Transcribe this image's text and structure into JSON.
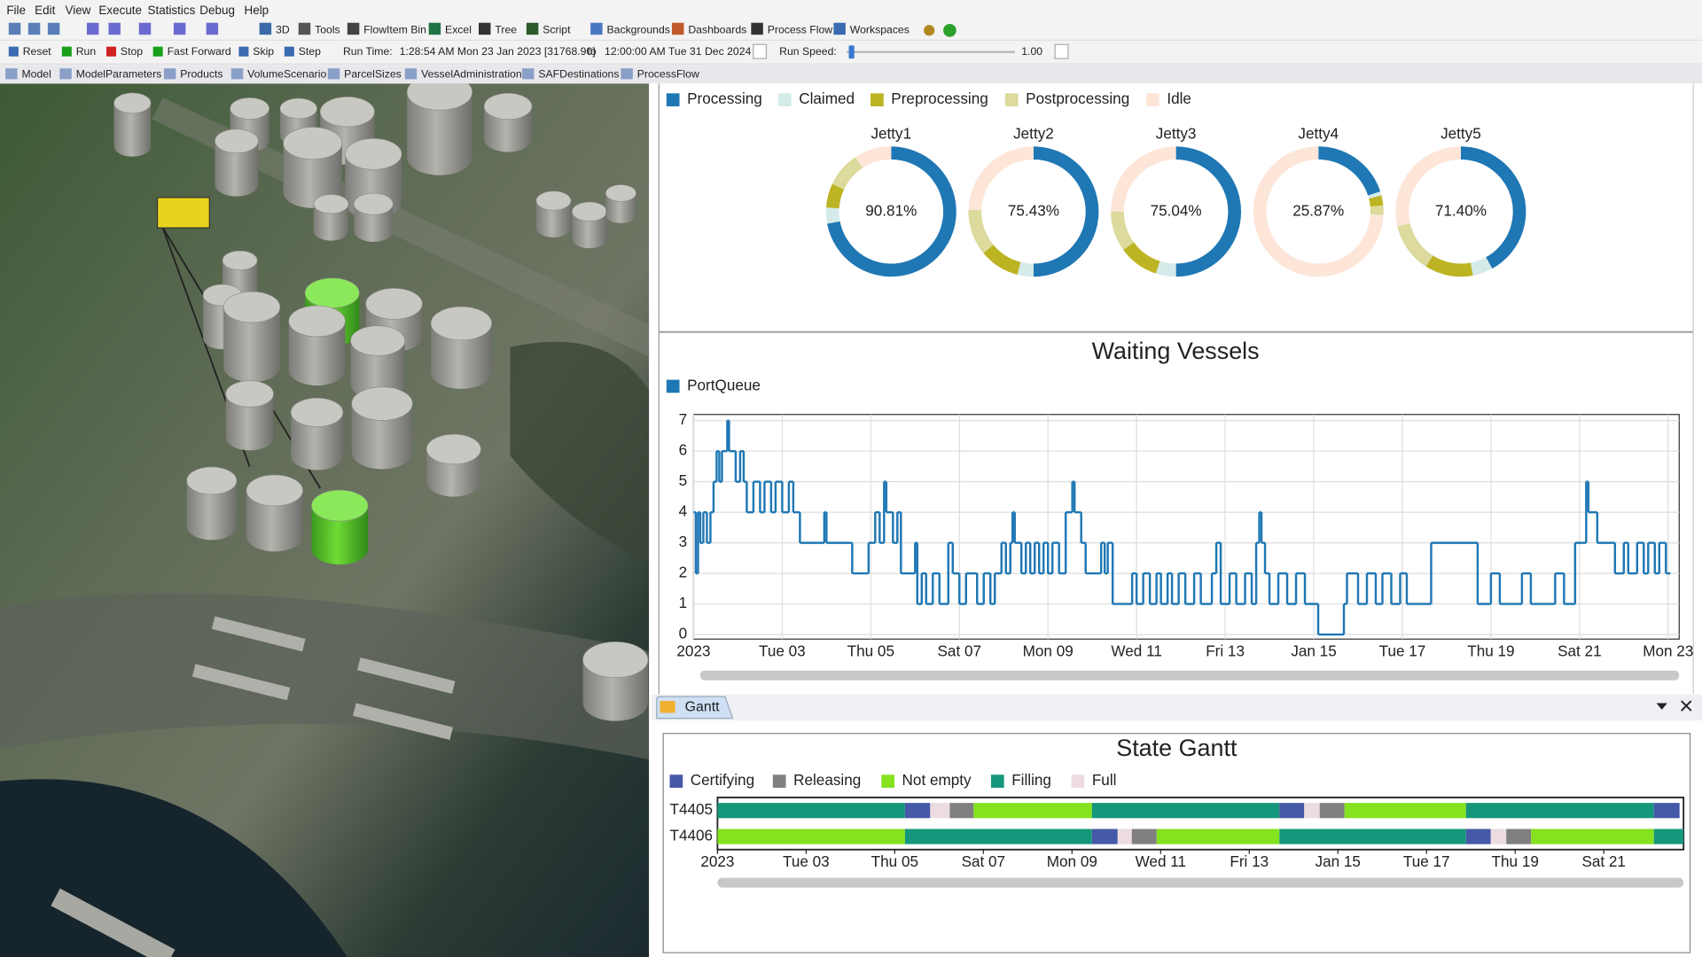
{
  "menu": [
    "File",
    "Edit",
    "View",
    "Execute",
    "Statistics",
    "Debug",
    "Help"
  ],
  "toolbar": [
    "3D",
    "Tools",
    "FlowItem Bin",
    "Excel",
    "Tree",
    "Script",
    "Backgrounds",
    "Dashboards",
    "Process Flow",
    "Workspaces"
  ],
  "run_bar": {
    "buttons": [
      "Reset",
      "Run",
      "Stop",
      "Fast Forward",
      "Skip",
      "Step"
    ],
    "run_time_label": "Run Time:",
    "start": "1:28:54 AM  Mon 23 Jan 2023  [31768.90]",
    "to": "to",
    "end": "12:00:00 AM  Tue 31 Dec 2024  [",
    "speed_label": "Run Speed:",
    "speed": "1.00"
  },
  "tabs": [
    "Model",
    "ModelParameters",
    "Products",
    "VolumeScenario",
    "ParcelSizes",
    "VesselAdministration",
    "SAFDestinations",
    "ProcessFlow"
  ],
  "gantt_tab": "Gantt",
  "chart_data": [
    {
      "type": "donut",
      "categories": [
        "Jetty1",
        "Jetty2",
        "Jetty3",
        "Jetty4",
        "Jetty5"
      ],
      "series": [
        {
          "name": "Processing",
          "color": "#1f77b4",
          "values": [
            72,
            50,
            50,
            20,
            42
          ]
        },
        {
          "name": "Claimed",
          "color": "#d4ebea",
          "values": [
            4,
            4,
            5,
            1,
            5
          ]
        },
        {
          "name": "Preprocessing",
          "color": "#bcb422",
          "values": [
            6,
            10,
            10,
            2.5,
            12
          ]
        },
        {
          "name": "Postprocessing",
          "color": "#dcda9c",
          "values": [
            8.81,
            11.43,
            10.04,
            2.37,
            12.4
          ]
        },
        {
          "name": "Idle",
          "color": "#fde5d8",
          "values": [
            9.19,
            24.57,
            24.96,
            74.13,
            28.6
          ]
        }
      ],
      "center_values": [
        90.81,
        75.43,
        75.04,
        25.87,
        71.4
      ],
      "center_value_labels": [
        "90.81%",
        "75.43%",
        "75.04%",
        "25.87%",
        "71.40%"
      ]
    },
    {
      "type": "line",
      "title": "Waiting Vessels",
      "step": true,
      "grid": true,
      "series": [
        {
          "name": "PortQueue",
          "color": "#1f77b4",
          "x": [
            0,
            0.05,
            0.1,
            0.15,
            0.22,
            0.3,
            0.38,
            0.45,
            0.52,
            0.58,
            0.64,
            0.76,
            0.8,
            0.95,
            1.05,
            1.13,
            1.2,
            1.35,
            1.5,
            1.6,
            1.75,
            1.85,
            2.0,
            2.15,
            2.25,
            2.4,
            2.95,
            3.0,
            3.58,
            3.95,
            4.1,
            4.2,
            4.3,
            4.35,
            4.5,
            4.6,
            4.68,
            5.0,
            5.05,
            5.15,
            5.25,
            5.4,
            5.55,
            5.75,
            5.85,
            6.0,
            6.15,
            6.4,
            6.55,
            6.7,
            6.8,
            6.95,
            7.05,
            7.15,
            7.2,
            7.25,
            7.4,
            7.5,
            7.6,
            7.7,
            7.8,
            7.9,
            8.0,
            8.1,
            8.25,
            8.4,
            8.55,
            8.6,
            8.75,
            8.85,
            9.2,
            9.28,
            9.35,
            9.46,
            9.9,
            10.0,
            10.15,
            10.3,
            10.45,
            10.55,
            10.7,
            10.8,
            10.95,
            11.1,
            11.3,
            11.45,
            11.7,
            11.8,
            11.9,
            12.1,
            12.25,
            12.45,
            12.6,
            12.7,
            12.77,
            12.82,
            12.9,
            13.0,
            13.2,
            13.4,
            13.6,
            13.8,
            14.1,
            14.68,
            14.75,
            15.0,
            15.2,
            15.4,
            15.55,
            15.75,
            15.95,
            16.1,
            16.65,
            17.7,
            18.0,
            18.2,
            18.7,
            18.9,
            19.45,
            19.65,
            19.9,
            20.15,
            20.2,
            20.4,
            20.8,
            21.0,
            21.1,
            21.3,
            21.45,
            21.55,
            21.7,
            21.8,
            21.95,
            22.05
          ],
          "values": [
            4,
            2,
            4,
            3,
            4,
            3,
            4,
            5,
            6,
            5,
            6,
            7,
            6,
            5,
            6,
            5,
            4,
            5,
            4,
            5,
            4,
            5,
            4,
            5,
            4,
            3,
            4,
            3,
            2,
            3,
            4,
            3,
            5,
            4,
            3,
            4,
            2,
            3,
            1,
            2,
            1,
            2,
            1,
            3,
            2,
            1,
            2,
            1,
            2,
            1,
            2,
            3,
            2,
            3,
            4,
            3,
            2,
            3,
            2,
            3,
            2,
            3,
            2,
            3,
            2,
            4,
            5,
            4,
            3,
            2,
            3,
            2,
            3,
            1,
            2,
            1,
            2,
            1,
            2,
            1,
            2,
            1,
            2,
            1,
            2,
            1,
            2,
            3,
            1,
            2,
            1,
            2,
            1,
            3,
            4,
            3,
            2,
            1,
            2,
            1,
            2,
            1,
            0,
            1,
            2,
            1,
            2,
            1,
            2,
            1,
            2,
            1,
            3,
            1,
            2,
            1,
            2,
            1,
            2,
            1,
            3,
            5,
            4,
            3,
            2,
            3,
            2,
            3,
            2,
            3,
            2,
            3,
            2,
            2
          ]
        }
      ],
      "xlim": [
        0,
        22.25
      ],
      "xticks": [
        {
          "value": 0,
          "label": "2023"
        },
        {
          "value": 2,
          "label": "Tue 03"
        },
        {
          "value": 4,
          "label": "Thu 05"
        },
        {
          "value": 6,
          "label": "Sat 07"
        },
        {
          "value": 8,
          "label": "Mon 09"
        },
        {
          "value": 10,
          "label": "Wed 11"
        },
        {
          "value": 12,
          "label": "Fri 13"
        },
        {
          "value": 14,
          "label": "Jan 15"
        },
        {
          "value": 16,
          "label": "Tue 17"
        },
        {
          "value": 18,
          "label": "Thu 19"
        },
        {
          "value": 20,
          "label": "Sat 21"
        },
        {
          "value": 22,
          "label": "Mon 23"
        }
      ],
      "ylim": [
        -0.15,
        7.2
      ],
      "yticks": [
        0,
        1,
        2,
        3,
        4,
        5,
        6,
        7
      ]
    },
    {
      "type": "gantt",
      "title": "State Gantt",
      "series": [
        {
          "name": "Certifying",
          "color": "#4658a8"
        },
        {
          "name": "Releasing",
          "color": "#808080"
        },
        {
          "name": "Not empty",
          "color": "#84e21e"
        },
        {
          "name": "Filling",
          "color": "#16977b"
        },
        {
          "name": "Full",
          "color": "#ecdce2"
        }
      ],
      "rows": [
        {
          "name": "T4405",
          "segments": [
            {
              "state": "Filling",
              "start": 0,
              "end": 4.23
            },
            {
              "state": "Certifying",
              "start": 4.23,
              "end": 4.8
            },
            {
              "state": "Full",
              "start": 4.8,
              "end": 5.24
            },
            {
              "state": "Releasing",
              "start": 5.24,
              "end": 5.78
            },
            {
              "state": "Not empty",
              "start": 5.78,
              "end": 8.45
            },
            {
              "state": "Filling",
              "start": 8.45,
              "end": 12.68
            },
            {
              "state": "Certifying",
              "start": 12.68,
              "end": 13.24
            },
            {
              "state": "Full",
              "start": 13.24,
              "end": 13.59
            },
            {
              "state": "Releasing",
              "start": 13.59,
              "end": 14.15
            },
            {
              "state": "Not empty",
              "start": 14.15,
              "end": 16.89
            },
            {
              "state": "Filling",
              "start": 16.89,
              "end": 21.13
            },
            {
              "state": "Certifying",
              "start": 21.13,
              "end": 21.71
            }
          ]
        },
        {
          "name": "T4406",
          "segments": [
            {
              "state": "Not empty",
              "start": 0,
              "end": 4.23
            },
            {
              "state": "Filling",
              "start": 4.23,
              "end": 8.45
            },
            {
              "state": "Certifying",
              "start": 8.45,
              "end": 9.03
            },
            {
              "state": "Full",
              "start": 9.03,
              "end": 9.35
            },
            {
              "state": "Releasing",
              "start": 9.35,
              "end": 9.91
            },
            {
              "state": "Not empty",
              "start": 9.91,
              "end": 12.68
            },
            {
              "state": "Filling",
              "start": 12.68,
              "end": 16.89
            },
            {
              "state": "Certifying",
              "start": 16.89,
              "end": 17.45
            },
            {
              "state": "Full",
              "start": 17.45,
              "end": 17.8
            },
            {
              "state": "Releasing",
              "start": 17.8,
              "end": 18.36
            },
            {
              "state": "Not empty",
              "start": 18.36,
              "end": 21.13
            },
            {
              "state": "Filling",
              "start": 21.13,
              "end": 21.8
            }
          ]
        }
      ],
      "xlim": [
        0,
        21.8
      ],
      "xticks": [
        {
          "value": 0,
          "label": "2023"
        },
        {
          "value": 2,
          "label": "Tue 03"
        },
        {
          "value": 4,
          "label": "Thu 05"
        },
        {
          "value": 6,
          "label": "Sat 07"
        },
        {
          "value": 8,
          "label": "Mon 09"
        },
        {
          "value": 10,
          "label": "Wed 11"
        },
        {
          "value": 12,
          "label": "Fri 13"
        },
        {
          "value": 14,
          "label": "Jan 15"
        },
        {
          "value": 16,
          "label": "Tue 17"
        },
        {
          "value": 18,
          "label": "Thu 19"
        },
        {
          "value": 20,
          "label": "Sat 21"
        }
      ]
    }
  ]
}
